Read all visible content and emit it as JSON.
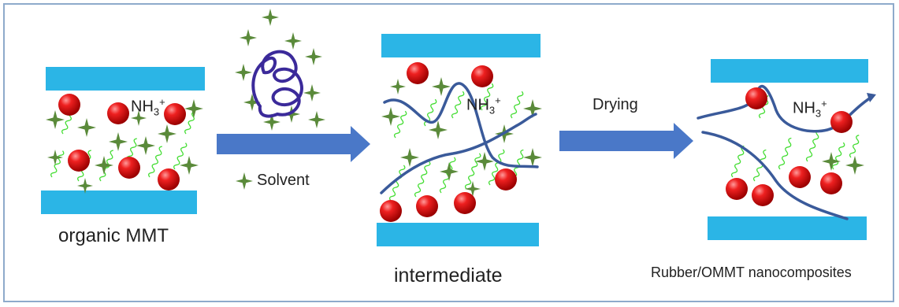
{
  "labels": {
    "organic": "organic MMT",
    "intermediate": "intermediate",
    "rubber": "Rubber/OMMT nanocomposites",
    "drying": "Drying",
    "solvent": "Solvent"
  },
  "ion": {
    "base": "NH",
    "sub": "3",
    "sup": "+"
  },
  "colors": {
    "layer": "#2bb5e6",
    "arrow": "#4a78c8",
    "ball": "#e01b1b",
    "chain": "#44dd33",
    "solvent_star": "#5a8a3a",
    "polymer": "#3a5a9a",
    "coil": "#3b2a9a",
    "border": "#8eaacb"
  }
}
